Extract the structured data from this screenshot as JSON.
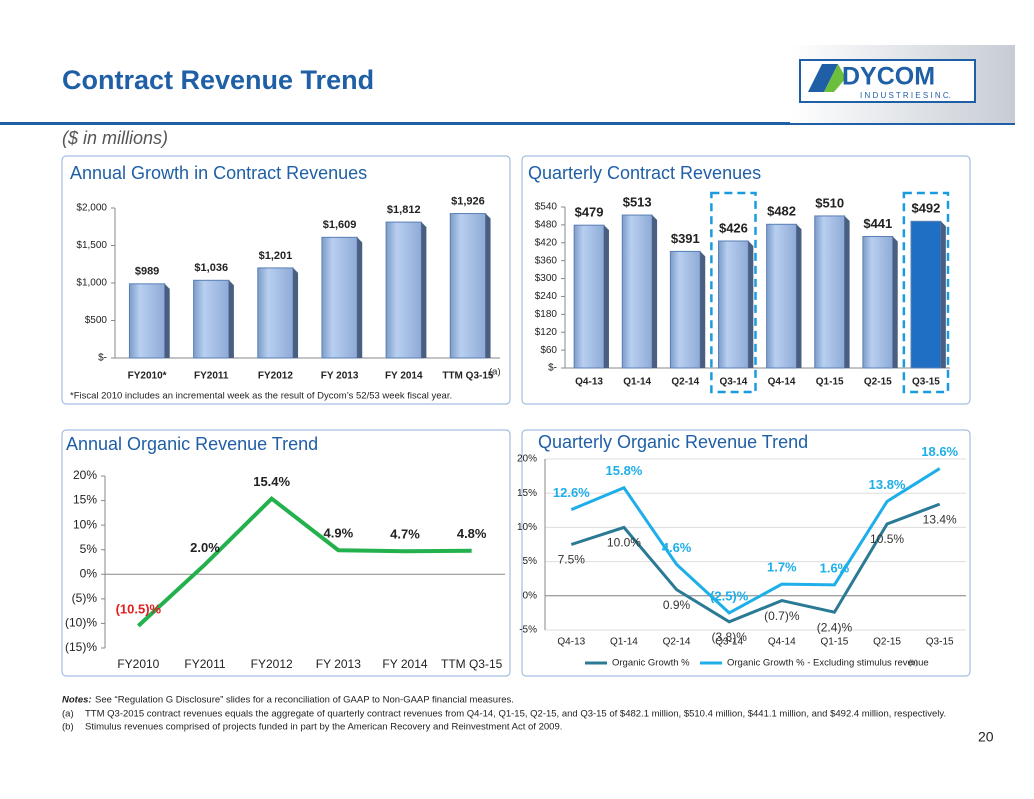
{
  "page": {
    "title": "Contract Revenue Trend",
    "subtitle": "($ in millions)",
    "logo": {
      "name": "DYCOM",
      "tagline": "I N D U S T R I E S   I N C."
    },
    "notes": {
      "label": "Notes:",
      "text": "See “Regulation G Disclosure” slides for a reconciliation of GAAP to Non-GAAP financial  measures.",
      "items": [
        {
          "marker": "(a)",
          "text": "TTM Q3-2015 contract revenues equals the aggregate of quarterly contract revenues from Q4-14, Q1-15, Q2-15, and Q3-15 of $482.1 million, $510.4 million, $441.1 million, and $492.4 million, respectively."
        },
        {
          "marker": "(b)",
          "text": "Stimulus revenues comprised of projects funded in part by the American Recovery and Reinvestment Act of 2009."
        }
      ]
    },
    "page_number": "20"
  },
  "chart_data": [
    {
      "type": "bar",
      "title": "Annual Growth in Contract Revenues",
      "categories": [
        "FY2010*",
        "FY2011",
        "FY2012",
        "FY 2013",
        "FY 2014",
        "TTM Q3-15"
      ],
      "values": [
        989,
        1036,
        1201,
        1609,
        1812,
        1926
      ],
      "value_labels": [
        "$989",
        "$1,036",
        "$1,201",
        "$1,609",
        "$1,812",
        "$1,926"
      ],
      "color": "#a9c3e6",
      "ylim": [
        0,
        2000
      ],
      "yticks": [
        {
          "value": 0,
          "label": "$-"
        },
        {
          "value": 500,
          "label": "$500"
        },
        {
          "value": 1000,
          "label": "$1,000"
        },
        {
          "value": 1500,
          "label": "$1,500"
        },
        {
          "value": 2000,
          "label": "$2,000"
        }
      ],
      "annotation": "(a)",
      "footnote": "*Fiscal 2010 includes an incremental week as the result of Dycom’s 52/53 week fiscal year."
    },
    {
      "type": "bar",
      "title": "Quarterly Contract Revenues",
      "categories": [
        "Q4-13",
        "Q1-14",
        "Q2-14",
        "Q3-14",
        "Q4-14",
        "Q1-15",
        "Q2-15",
        "Q3-15"
      ],
      "values": [
        479,
        513,
        391,
        426,
        482,
        510,
        441,
        492
      ],
      "value_labels": [
        "$479",
        "$513",
        "$391",
        "$426",
        "$482",
        "$510",
        "$441",
        "$492"
      ],
      "colors": [
        "#a9c3e6",
        "#a9c3e6",
        "#a9c3e6",
        "#a9c3e6",
        "#a9c3e6",
        "#a9c3e6",
        "#a9c3e6",
        "#1f6fc4"
      ],
      "highlight": [
        3,
        7
      ],
      "ylim": [
        0,
        540
      ],
      "yticks": [
        {
          "value": 0,
          "label": "$-"
        },
        {
          "value": 60,
          "label": "$60"
        },
        {
          "value": 120,
          "label": "$120"
        },
        {
          "value": 180,
          "label": "$180"
        },
        {
          "value": 240,
          "label": "$240"
        },
        {
          "value": 300,
          "label": "$300"
        },
        {
          "value": 360,
          "label": "$360"
        },
        {
          "value": 420,
          "label": "$420"
        },
        {
          "value": 480,
          "label": "$480"
        },
        {
          "value": 540,
          "label": "$540"
        }
      ]
    },
    {
      "type": "line",
      "title": "Annual Organic Revenue Trend",
      "categories": [
        "FY2010",
        "FY2011",
        "FY2012",
        "FY 2013",
        "FY 2014",
        "TTM Q3-15"
      ],
      "series": [
        {
          "color": "#22b14c",
          "values": [
            -10.5,
            2.0,
            15.4,
            4.9,
            4.7,
            4.8
          ],
          "value_labels": [
            "(10.5)%",
            "2.0%",
            "15.4%",
            "4.9%",
            "4.7%",
            "4.8%"
          ]
        }
      ],
      "ylim": [
        -15,
        20
      ],
      "yticks": [
        {
          "value": -15,
          "label": "(15)%"
        },
        {
          "value": -10,
          "label": "(10)%"
        },
        {
          "value": -5,
          "label": "(5)%"
        },
        {
          "value": 0,
          "label": "0%"
        },
        {
          "value": 5,
          "label": "5%"
        },
        {
          "value": 10,
          "label": "10%"
        },
        {
          "value": 15,
          "label": "15%"
        },
        {
          "value": 20,
          "label": "20%"
        }
      ]
    },
    {
      "type": "line",
      "title": "Quarterly Organic Revenue Trend",
      "categories": [
        "Q4-13",
        "Q1-14",
        "Q2-14",
        "Q3-14",
        "Q4-14",
        "Q1-15",
        "Q2-15",
        "Q3-15"
      ],
      "series": [
        {
          "name": "Organic Growth %",
          "color": "#2a7a96",
          "values": [
            7.5,
            10.0,
            0.9,
            -3.8,
            -0.7,
            -2.4,
            10.5,
            13.4
          ],
          "value_labels": [
            "7.5%",
            "10.0%",
            "0.9%",
            "(3.8)%",
            "(0.7)%",
            "(2.4)%",
            "10.5%",
            "13.4%"
          ]
        },
        {
          "name": "Organic Growth % - Excluding stimulus revenue",
          "color": "#1eaee8",
          "values": [
            12.6,
            15.8,
            4.6,
            -2.5,
            1.7,
            1.6,
            13.8,
            18.6
          ],
          "value_labels": [
            "12.6%",
            "15.8%",
            "4.6%",
            "(2.5)%",
            "1.7%",
            "1.6%",
            "13.8%",
            "18.6%"
          ]
        }
      ],
      "ylim": [
        -5,
        20
      ],
      "yticks": [
        {
          "value": -5,
          "label": "-5%"
        },
        {
          "value": 0,
          "label": "0%"
        },
        {
          "value": 5,
          "label": "5%"
        },
        {
          "value": 10,
          "label": "10%"
        },
        {
          "value": 15,
          "label": "15%"
        },
        {
          "value": 20,
          "label": "20%"
        }
      ],
      "annotation": "(b)"
    }
  ]
}
